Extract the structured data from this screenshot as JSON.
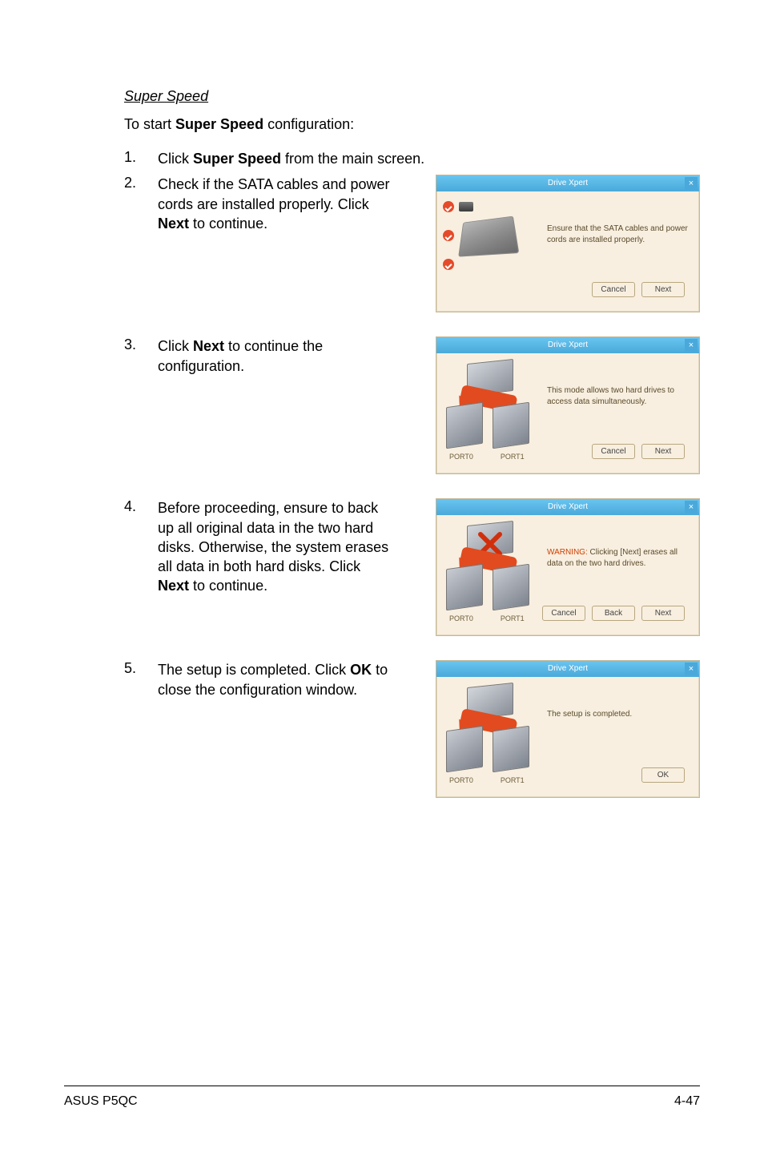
{
  "section_title": "Super Speed",
  "intro_pre": "To start ",
  "intro_bold": "Super Speed",
  "intro_post": " configuration:",
  "steps": {
    "s1": {
      "num": "1.",
      "pre": "Click ",
      "bold": "Super Speed",
      "post": " from the main screen."
    },
    "s2": {
      "num": "2.",
      "pre": "Check if the SATA cables and power cords are installed properly. Click ",
      "bold": "Next",
      "post": " to continue."
    },
    "s3": {
      "num": "3.",
      "pre": "Click ",
      "bold": "Next",
      "post": " to continue the configuration."
    },
    "s4": {
      "num": "4.",
      "pre": "Before proceeding, ensure to back up all original data in the two hard disks. Otherwise, the system erases all data in both hard disks. Click ",
      "bold": "Next",
      "post": " to continue."
    },
    "s5": {
      "num": "5.",
      "pre": "The setup is completed. Click ",
      "bold": "OK",
      "post": " to close the configuration window."
    }
  },
  "dialogs": {
    "title": "Drive Xpert",
    "close_glyph": "×",
    "d1": {
      "msg": "Ensure that the SATA cables and power cords are installed properly.",
      "btn_cancel": "Cancel",
      "btn_next": "Next"
    },
    "d2": {
      "msg": "This mode allows two hard drives to access data simultaneously.",
      "port0": "PORT0",
      "port1": "PORT1",
      "btn_cancel": "Cancel",
      "btn_next": "Next"
    },
    "d3": {
      "warn": "WARNING:",
      "msg": " Clicking [Next] erases all data on the two hard drives.",
      "port0": "PORT0",
      "port1": "PORT1",
      "btn_cancel": "Cancel",
      "btn_back": "Back",
      "btn_next": "Next"
    },
    "d4": {
      "msg": "The setup is completed.",
      "port0": "PORT0",
      "port1": "PORT1",
      "btn_ok": "OK"
    }
  },
  "footer": {
    "left": "ASUS P5QC",
    "right": "4-47"
  },
  "colors": {
    "page_bg": "#ffffff",
    "text": "#000000",
    "dialog_bg": "#f8efe0",
    "dialog_border": "#c5b896",
    "titlebar_top": "#69c5f0",
    "titlebar_bottom": "#4aa9da",
    "button_border": "#b7a77f",
    "warn_text": "#d04000",
    "arrow_red": "#e24b1f",
    "check_red": "#e54b2a",
    "port_text": "#6b5c3a"
  }
}
